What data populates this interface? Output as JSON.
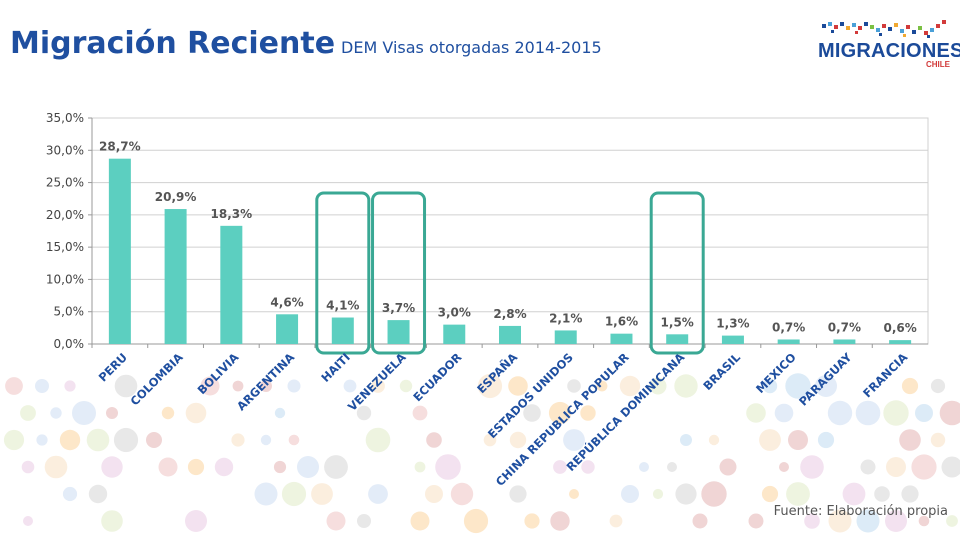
{
  "header": {
    "title": "Migración Reciente",
    "subtitle": "DEM Visas otorgadas 2014-2015"
  },
  "logo": {
    "wordmark": "MIGRACIONES",
    "country": "CHILE"
  },
  "footer": {
    "source": "Fuente: Elaboración propia"
  },
  "colors": {
    "title": "#1f4fa0",
    "bar": "#5ccfc0",
    "highlight": "#3aa894"
  },
  "chart_data": {
    "type": "bar",
    "categories": [
      "PERU",
      "COLOMBIA",
      "BOLIVIA",
      "ARGENTINA",
      "HAITI",
      "VENEZUELA",
      "ECUADOR",
      "ESPAÑA",
      "ESTADOS UNIDOS",
      "CHINA REPUBLICA POPULAR",
      "REPÚBLICA DOMINICANA",
      "BRASIL",
      "MEXICO",
      "PARAGUAY",
      "FRANCIA"
    ],
    "values": [
      28.7,
      20.9,
      18.3,
      4.6,
      4.1,
      3.7,
      3.0,
      2.8,
      2.1,
      1.6,
      1.5,
      1.3,
      0.7,
      0.7,
      0.6
    ],
    "data_labels": [
      "28,7%",
      "20,9%",
      "18,3%",
      "4,6%",
      "4,1%",
      "3,7%",
      "3,0%",
      "2,8%",
      "2,1%",
      "1,6%",
      "1,5%",
      "1,3%",
      "0,7%",
      "0,7%",
      "0,6%"
    ],
    "yticks": [
      0,
      5,
      10,
      15,
      20,
      25,
      30,
      35
    ],
    "ytick_labels": [
      "0,0%",
      "5,0%",
      "10,0%",
      "15,0%",
      "20,0%",
      "25,0%",
      "30,0%",
      "35,0%"
    ],
    "ylim": [
      0,
      35
    ],
    "grid": true,
    "highlighted": [
      "HAITI",
      "VENEZUELA",
      "REPÚBLICA DOMINICANA"
    ]
  }
}
